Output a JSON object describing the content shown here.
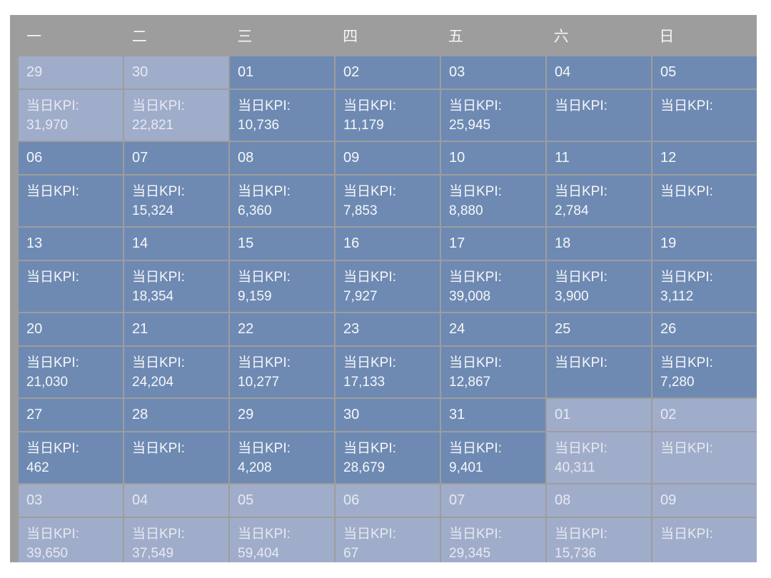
{
  "calendar": {
    "kpi_label": "当日KPI:",
    "weekdays": [
      "一",
      "二",
      "三",
      "四",
      "五",
      "六",
      "日"
    ],
    "weeks": [
      [
        {
          "day": "29",
          "value": "31,970",
          "month": "other"
        },
        {
          "day": "30",
          "value": "22,821",
          "month": "other"
        },
        {
          "day": "01",
          "value": "10,736",
          "month": "cur"
        },
        {
          "day": "02",
          "value": "11,179",
          "month": "cur"
        },
        {
          "day": "03",
          "value": "25,945",
          "month": "cur"
        },
        {
          "day": "04",
          "value": "",
          "month": "cur"
        },
        {
          "day": "05",
          "value": "",
          "month": "cur"
        }
      ],
      [
        {
          "day": "06",
          "value": "",
          "month": "cur"
        },
        {
          "day": "07",
          "value": "15,324",
          "month": "cur"
        },
        {
          "day": "08",
          "value": "6,360",
          "month": "cur"
        },
        {
          "day": "09",
          "value": "7,853",
          "month": "cur"
        },
        {
          "day": "10",
          "value": "8,880",
          "month": "cur"
        },
        {
          "day": "11",
          "value": "2,784",
          "month": "cur"
        },
        {
          "day": "12",
          "value": "",
          "month": "cur"
        }
      ],
      [
        {
          "day": "13",
          "value": "",
          "month": "cur"
        },
        {
          "day": "14",
          "value": "18,354",
          "month": "cur"
        },
        {
          "day": "15",
          "value": "9,159",
          "month": "cur"
        },
        {
          "day": "16",
          "value": "7,927",
          "month": "cur"
        },
        {
          "day": "17",
          "value": "39,008",
          "month": "cur"
        },
        {
          "day": "18",
          "value": "3,900",
          "month": "cur"
        },
        {
          "day": "19",
          "value": "3,112",
          "month": "cur"
        }
      ],
      [
        {
          "day": "20",
          "value": "21,030",
          "month": "cur"
        },
        {
          "day": "21",
          "value": "24,204",
          "month": "cur"
        },
        {
          "day": "22",
          "value": "10,277",
          "month": "cur"
        },
        {
          "day": "23",
          "value": "17,133",
          "month": "cur"
        },
        {
          "day": "24",
          "value": "12,867",
          "month": "cur"
        },
        {
          "day": "25",
          "value": "",
          "month": "cur"
        },
        {
          "day": "26",
          "value": "7,280",
          "month": "cur"
        }
      ],
      [
        {
          "day": "27",
          "value": "462",
          "month": "cur"
        },
        {
          "day": "28",
          "value": "",
          "month": "cur"
        },
        {
          "day": "29",
          "value": "4,208",
          "month": "cur"
        },
        {
          "day": "30",
          "value": "28,679",
          "month": "cur"
        },
        {
          "day": "31",
          "value": "9,401",
          "month": "cur"
        },
        {
          "day": "01",
          "value": "40,311",
          "month": "other"
        },
        {
          "day": "02",
          "value": "",
          "month": "other"
        }
      ],
      [
        {
          "day": "03",
          "value": "39,650",
          "month": "other"
        },
        {
          "day": "04",
          "value": "37,549",
          "month": "other"
        },
        {
          "day": "05",
          "value": "59,404",
          "month": "other"
        },
        {
          "day": "06",
          "value": "67",
          "month": "other"
        },
        {
          "day": "07",
          "value": "29,345",
          "month": "other"
        },
        {
          "day": "08",
          "value": "15,736",
          "month": "other"
        },
        {
          "day": "09",
          "value": "",
          "month": "other"
        }
      ]
    ],
    "colors": {
      "panel_gray": "#9d9d9d",
      "current_month_cell": "#6e8ab3",
      "other_month_cell": "#a0adca",
      "header_text": "#f5f5f5",
      "cell_text": "#f6f7f9",
      "background": "#ffffff"
    }
  }
}
